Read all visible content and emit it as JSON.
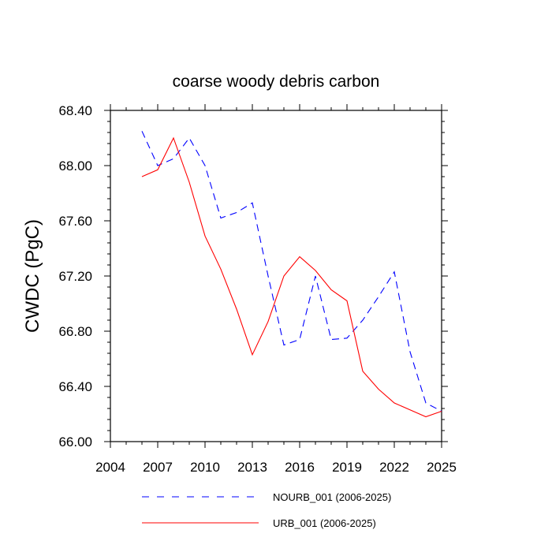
{
  "chart_data": {
    "type": "line",
    "title": "coarse woody debris carbon",
    "xlabel": "",
    "ylabel": "CWDC  (PgC)",
    "xlim": [
      2004,
      2025
    ],
    "ylim": [
      66.0,
      68.4
    ],
    "x_ticks": [
      2004,
      2007,
      2010,
      2013,
      2016,
      2019,
      2022,
      2025
    ],
    "x_tick_labels": [
      "2004",
      "2007",
      "2010",
      "2013",
      "2016",
      "2019",
      "2022",
      "2025"
    ],
    "y_ticks": [
      66.0,
      66.4,
      66.8,
      67.2,
      67.6,
      68.0,
      68.4
    ],
    "y_tick_labels": [
      "66.00",
      "66.40",
      "66.80",
      "67.20",
      "67.60",
      "68.00",
      "68.40"
    ],
    "grid": false,
    "legend_position": "bottom",
    "x": [
      2006,
      2007,
      2008,
      2009,
      2010,
      2011,
      2012,
      2013,
      2014,
      2015,
      2016,
      2017,
      2018,
      2019,
      2020,
      2021,
      2022,
      2023,
      2024,
      2025
    ],
    "series": [
      {
        "name": "NOURB_001 (2006-2025)",
        "color": "#0000ff",
        "dash": "dashed",
        "values": [
          68.25,
          68.0,
          68.05,
          68.2,
          68.0,
          67.62,
          67.66,
          67.73,
          67.2,
          66.7,
          66.74,
          67.2,
          66.74,
          66.75,
          66.88,
          67.05,
          67.23,
          66.65,
          66.28,
          66.22
        ]
      },
      {
        "name": "URB_001 (2006-2025)",
        "color": "#ff0000",
        "dash": "solid",
        "values": [
          67.92,
          67.97,
          68.2,
          67.88,
          67.49,
          67.25,
          66.96,
          66.63,
          66.87,
          67.2,
          67.34,
          67.24,
          67.1,
          67.02,
          66.51,
          66.38,
          66.28,
          66.23,
          66.18,
          66.22
        ]
      }
    ]
  }
}
